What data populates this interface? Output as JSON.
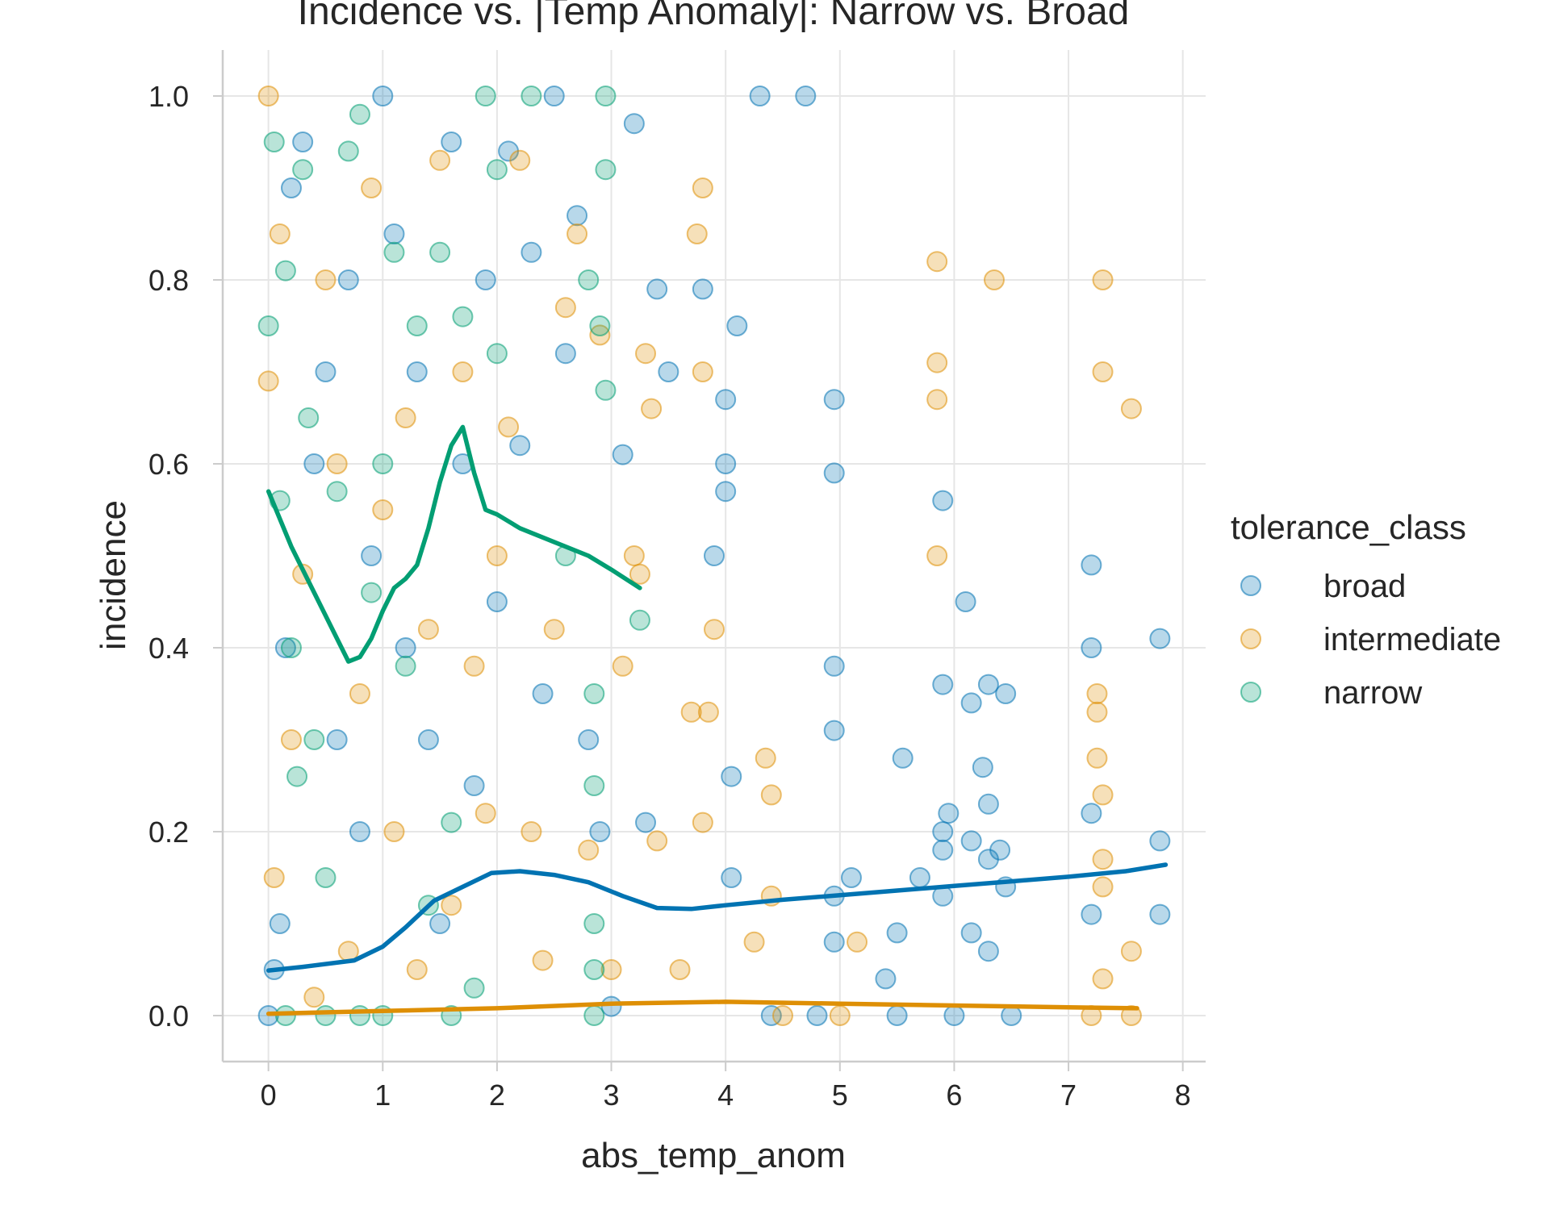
{
  "chart_data": {
    "type": "scatter",
    "title": "Incidence vs. |Temp Anomaly|: Narrow vs. Broad",
    "xlabel": "abs_temp_anom",
    "ylabel": "incidence",
    "xlim": [
      -0.4,
      8.2
    ],
    "ylim": [
      -0.05,
      1.05
    ],
    "xticks": [
      "0",
      "1",
      "2",
      "3",
      "4",
      "5",
      "6",
      "7",
      "8"
    ],
    "yticks": [
      "0.0",
      "0.2",
      "0.4",
      "0.6",
      "0.8",
      "1.0"
    ],
    "grid": true,
    "legend_title": "tolerance_class",
    "legend_position": "right",
    "series": [
      {
        "name": "broad",
        "color": "#0173b2",
        "points": [
          [
            0.0,
            0.0
          ],
          [
            0.05,
            0.05
          ],
          [
            0.1,
            0.1
          ],
          [
            0.15,
            0.4
          ],
          [
            0.2,
            0.9
          ],
          [
            0.3,
            0.95
          ],
          [
            0.4,
            0.6
          ],
          [
            0.5,
            0.7
          ],
          [
            0.6,
            0.3
          ],
          [
            0.7,
            0.8
          ],
          [
            0.8,
            0.2
          ],
          [
            0.9,
            0.5
          ],
          [
            1.0,
            1.0
          ],
          [
            1.1,
            0.85
          ],
          [
            1.2,
            0.4
          ],
          [
            1.3,
            0.7
          ],
          [
            1.4,
            0.3
          ],
          [
            1.5,
            0.1
          ],
          [
            1.6,
            0.95
          ],
          [
            1.7,
            0.6
          ],
          [
            1.8,
            0.25
          ],
          [
            1.9,
            0.8
          ],
          [
            2.0,
            0.45
          ],
          [
            2.1,
            0.94
          ],
          [
            2.2,
            0.62
          ],
          [
            2.3,
            0.83
          ],
          [
            2.4,
            0.35
          ],
          [
            2.5,
            1.0
          ],
          [
            2.6,
            0.72
          ],
          [
            2.7,
            0.87
          ],
          [
            2.8,
            0.3
          ],
          [
            2.9,
            0.2
          ],
          [
            3.0,
            0.01
          ],
          [
            3.1,
            0.61
          ],
          [
            3.2,
            0.97
          ],
          [
            3.3,
            0.21
          ],
          [
            3.4,
            0.79
          ],
          [
            3.5,
            0.7
          ],
          [
            3.8,
            0.79
          ],
          [
            3.9,
            0.5
          ],
          [
            4.0,
            0.57
          ],
          [
            4.0,
            0.6
          ],
          [
            4.0,
            0.67
          ],
          [
            4.05,
            0.15
          ],
          [
            4.05,
            0.26
          ],
          [
            4.1,
            0.75
          ],
          [
            4.3,
            1.0
          ],
          [
            4.7,
            1.0
          ],
          [
            4.95,
            0.67
          ],
          [
            4.95,
            0.59
          ],
          [
            4.95,
            0.38
          ],
          [
            4.95,
            0.31
          ],
          [
            4.95,
            0.13
          ],
          [
            4.95,
            0.08
          ],
          [
            5.1,
            0.15
          ],
          [
            5.4,
            0.04
          ],
          [
            5.5,
            0.09
          ],
          [
            5.55,
            0.28
          ],
          [
            5.7,
            0.15
          ],
          [
            5.9,
            0.56
          ],
          [
            5.9,
            0.36
          ],
          [
            5.9,
            0.2
          ],
          [
            5.9,
            0.18
          ],
          [
            5.9,
            0.13
          ],
          [
            5.95,
            0.22
          ],
          [
            6.1,
            0.45
          ],
          [
            6.15,
            0.34
          ],
          [
            6.15,
            0.19
          ],
          [
            6.15,
            0.09
          ],
          [
            6.25,
            0.27
          ],
          [
            6.3,
            0.36
          ],
          [
            6.3,
            0.23
          ],
          [
            6.3,
            0.17
          ],
          [
            6.3,
            0.07
          ],
          [
            6.4,
            0.18
          ],
          [
            6.45,
            0.35
          ],
          [
            6.45,
            0.14
          ],
          [
            7.2,
            0.49
          ],
          [
            7.2,
            0.4
          ],
          [
            7.2,
            0.22
          ],
          [
            7.2,
            0.11
          ],
          [
            7.8,
            0.41
          ],
          [
            7.8,
            0.19
          ],
          [
            7.8,
            0.11
          ],
          [
            4.4,
            0.0
          ],
          [
            4.8,
            0.0
          ],
          [
            5.5,
            0.0
          ],
          [
            6.0,
            0.0
          ],
          [
            6.5,
            0.0
          ]
        ]
      },
      {
        "name": "intermediate",
        "color": "#de8f05",
        "points": [
          [
            0.0,
            0.69
          ],
          [
            0.0,
            1.0
          ],
          [
            0.05,
            0.15
          ],
          [
            0.1,
            0.85
          ],
          [
            0.2,
            0.3
          ],
          [
            0.3,
            0.48
          ],
          [
            0.4,
            0.02
          ],
          [
            0.5,
            0.8
          ],
          [
            0.6,
            0.6
          ],
          [
            0.7,
            0.07
          ],
          [
            0.8,
            0.35
          ],
          [
            0.9,
            0.9
          ],
          [
            1.0,
            0.55
          ],
          [
            1.1,
            0.2
          ],
          [
            1.2,
            0.65
          ],
          [
            1.3,
            0.05
          ],
          [
            1.4,
            0.42
          ],
          [
            1.5,
            0.93
          ],
          [
            1.6,
            0.12
          ],
          [
            1.7,
            0.7
          ],
          [
            1.8,
            0.38
          ],
          [
            1.9,
            0.22
          ],
          [
            2.0,
            0.5
          ],
          [
            2.1,
            0.64
          ],
          [
            2.2,
            0.93
          ],
          [
            2.3,
            0.2
          ],
          [
            2.4,
            0.06
          ],
          [
            2.5,
            0.42
          ],
          [
            2.6,
            0.77
          ],
          [
            2.7,
            0.85
          ],
          [
            2.8,
            0.18
          ],
          [
            2.9,
            0.74
          ],
          [
            3.0,
            0.05
          ],
          [
            3.1,
            0.38
          ],
          [
            3.2,
            0.5
          ],
          [
            3.25,
            0.48
          ],
          [
            3.3,
            0.72
          ],
          [
            3.35,
            0.66
          ],
          [
            3.4,
            0.19
          ],
          [
            3.6,
            0.05
          ],
          [
            3.7,
            0.33
          ],
          [
            3.75,
            0.85
          ],
          [
            3.8,
            0.9
          ],
          [
            3.8,
            0.21
          ],
          [
            3.8,
            0.7
          ],
          [
            3.85,
            0.33
          ],
          [
            3.9,
            0.42
          ],
          [
            4.25,
            0.08
          ],
          [
            4.35,
            0.28
          ],
          [
            4.4,
            0.24
          ],
          [
            4.4,
            0.13
          ],
          [
            5.15,
            0.08
          ],
          [
            5.85,
            0.82
          ],
          [
            5.85,
            0.71
          ],
          [
            5.85,
            0.67
          ],
          [
            5.85,
            0.5
          ],
          [
            6.35,
            0.8
          ],
          [
            7.25,
            0.35
          ],
          [
            7.25,
            0.33
          ],
          [
            7.25,
            0.28
          ],
          [
            7.3,
            0.8
          ],
          [
            7.3,
            0.7
          ],
          [
            7.3,
            0.24
          ],
          [
            7.3,
            0.17
          ],
          [
            7.3,
            0.14
          ],
          [
            7.3,
            0.04
          ],
          [
            7.55,
            0.66
          ],
          [
            7.55,
            0.07
          ],
          [
            7.2,
            0.0
          ],
          [
            7.55,
            0.0
          ],
          [
            4.5,
            0.0
          ],
          [
            5.0,
            0.0
          ]
        ]
      },
      {
        "name": "narrow",
        "color": "#029e73",
        "points": [
          [
            0.0,
            0.75
          ],
          [
            0.05,
            0.95
          ],
          [
            0.1,
            0.56
          ],
          [
            0.15,
            0.81
          ],
          [
            0.2,
            0.4
          ],
          [
            0.25,
            0.26
          ],
          [
            0.3,
            0.92
          ],
          [
            0.35,
            0.65
          ],
          [
            0.4,
            0.3
          ],
          [
            0.5,
            0.15
          ],
          [
            0.6,
            0.57
          ],
          [
            0.7,
            0.94
          ],
          [
            0.8,
            0.98
          ],
          [
            0.9,
            0.46
          ],
          [
            1.0,
            0.6
          ],
          [
            1.1,
            0.83
          ],
          [
            1.2,
            0.38
          ],
          [
            1.3,
            0.75
          ],
          [
            1.4,
            0.12
          ],
          [
            1.5,
            0.83
          ],
          [
            1.6,
            0.21
          ],
          [
            1.7,
            0.76
          ],
          [
            1.8,
            0.03
          ],
          [
            1.9,
            1.0
          ],
          [
            2.0,
            0.92
          ],
          [
            2.0,
            0.72
          ],
          [
            2.3,
            1.0
          ],
          [
            2.6,
            0.5
          ],
          [
            2.8,
            0.8
          ],
          [
            2.85,
            0.35
          ],
          [
            2.85,
            0.25
          ],
          [
            2.85,
            0.1
          ],
          [
            2.85,
            0.05
          ],
          [
            2.9,
            0.75
          ],
          [
            2.95,
            1.0
          ],
          [
            2.95,
            0.92
          ],
          [
            2.95,
            0.68
          ],
          [
            3.25,
            0.43
          ],
          [
            0.15,
            0.0
          ],
          [
            0.5,
            0.0
          ],
          [
            0.8,
            0.0
          ],
          [
            1.0,
            0.0
          ],
          [
            1.6,
            0.0
          ],
          [
            2.85,
            0.0
          ]
        ]
      }
    ],
    "lines": [
      {
        "name": "narrow",
        "color": "#029e73",
        "x": [
          0.0,
          0.2,
          0.4,
          0.6,
          0.7,
          0.8,
          0.9,
          1.0,
          1.1,
          1.2,
          1.3,
          1.4,
          1.5,
          1.6,
          1.7,
          1.8,
          1.9,
          2.0,
          2.2,
          2.5,
          2.8,
          3.0,
          3.25
        ],
        "y": [
          0.57,
          0.51,
          0.46,
          0.41,
          0.385,
          0.39,
          0.41,
          0.44,
          0.465,
          0.475,
          0.49,
          0.53,
          0.58,
          0.62,
          0.64,
          0.59,
          0.55,
          0.545,
          0.53,
          0.515,
          0.5,
          0.485,
          0.465
        ]
      },
      {
        "name": "broad",
        "color": "#0173b2",
        "x": [
          0.0,
          0.3,
          0.75,
          1.0,
          1.2,
          1.45,
          1.7,
          1.95,
          2.2,
          2.5,
          2.8,
          3.1,
          3.4,
          3.7,
          4.0,
          4.5,
          5.0,
          5.5,
          6.0,
          6.5,
          7.0,
          7.5,
          7.85
        ],
        "y": [
          0.049,
          0.053,
          0.06,
          0.075,
          0.096,
          0.125,
          0.14,
          0.155,
          0.157,
          0.153,
          0.145,
          0.13,
          0.117,
          0.116,
          0.12,
          0.126,
          0.131,
          0.136,
          0.141,
          0.146,
          0.151,
          0.157,
          0.164
        ]
      },
      {
        "name": "intermediate",
        "color": "#de8f05",
        "x": [
          0.0,
          1.0,
          2.0,
          3.0,
          4.0,
          5.0,
          6.0,
          7.0,
          7.6
        ],
        "y": [
          0.002,
          0.005,
          0.008,
          0.013,
          0.015,
          0.013,
          0.011,
          0.009,
          0.008
        ]
      }
    ]
  }
}
